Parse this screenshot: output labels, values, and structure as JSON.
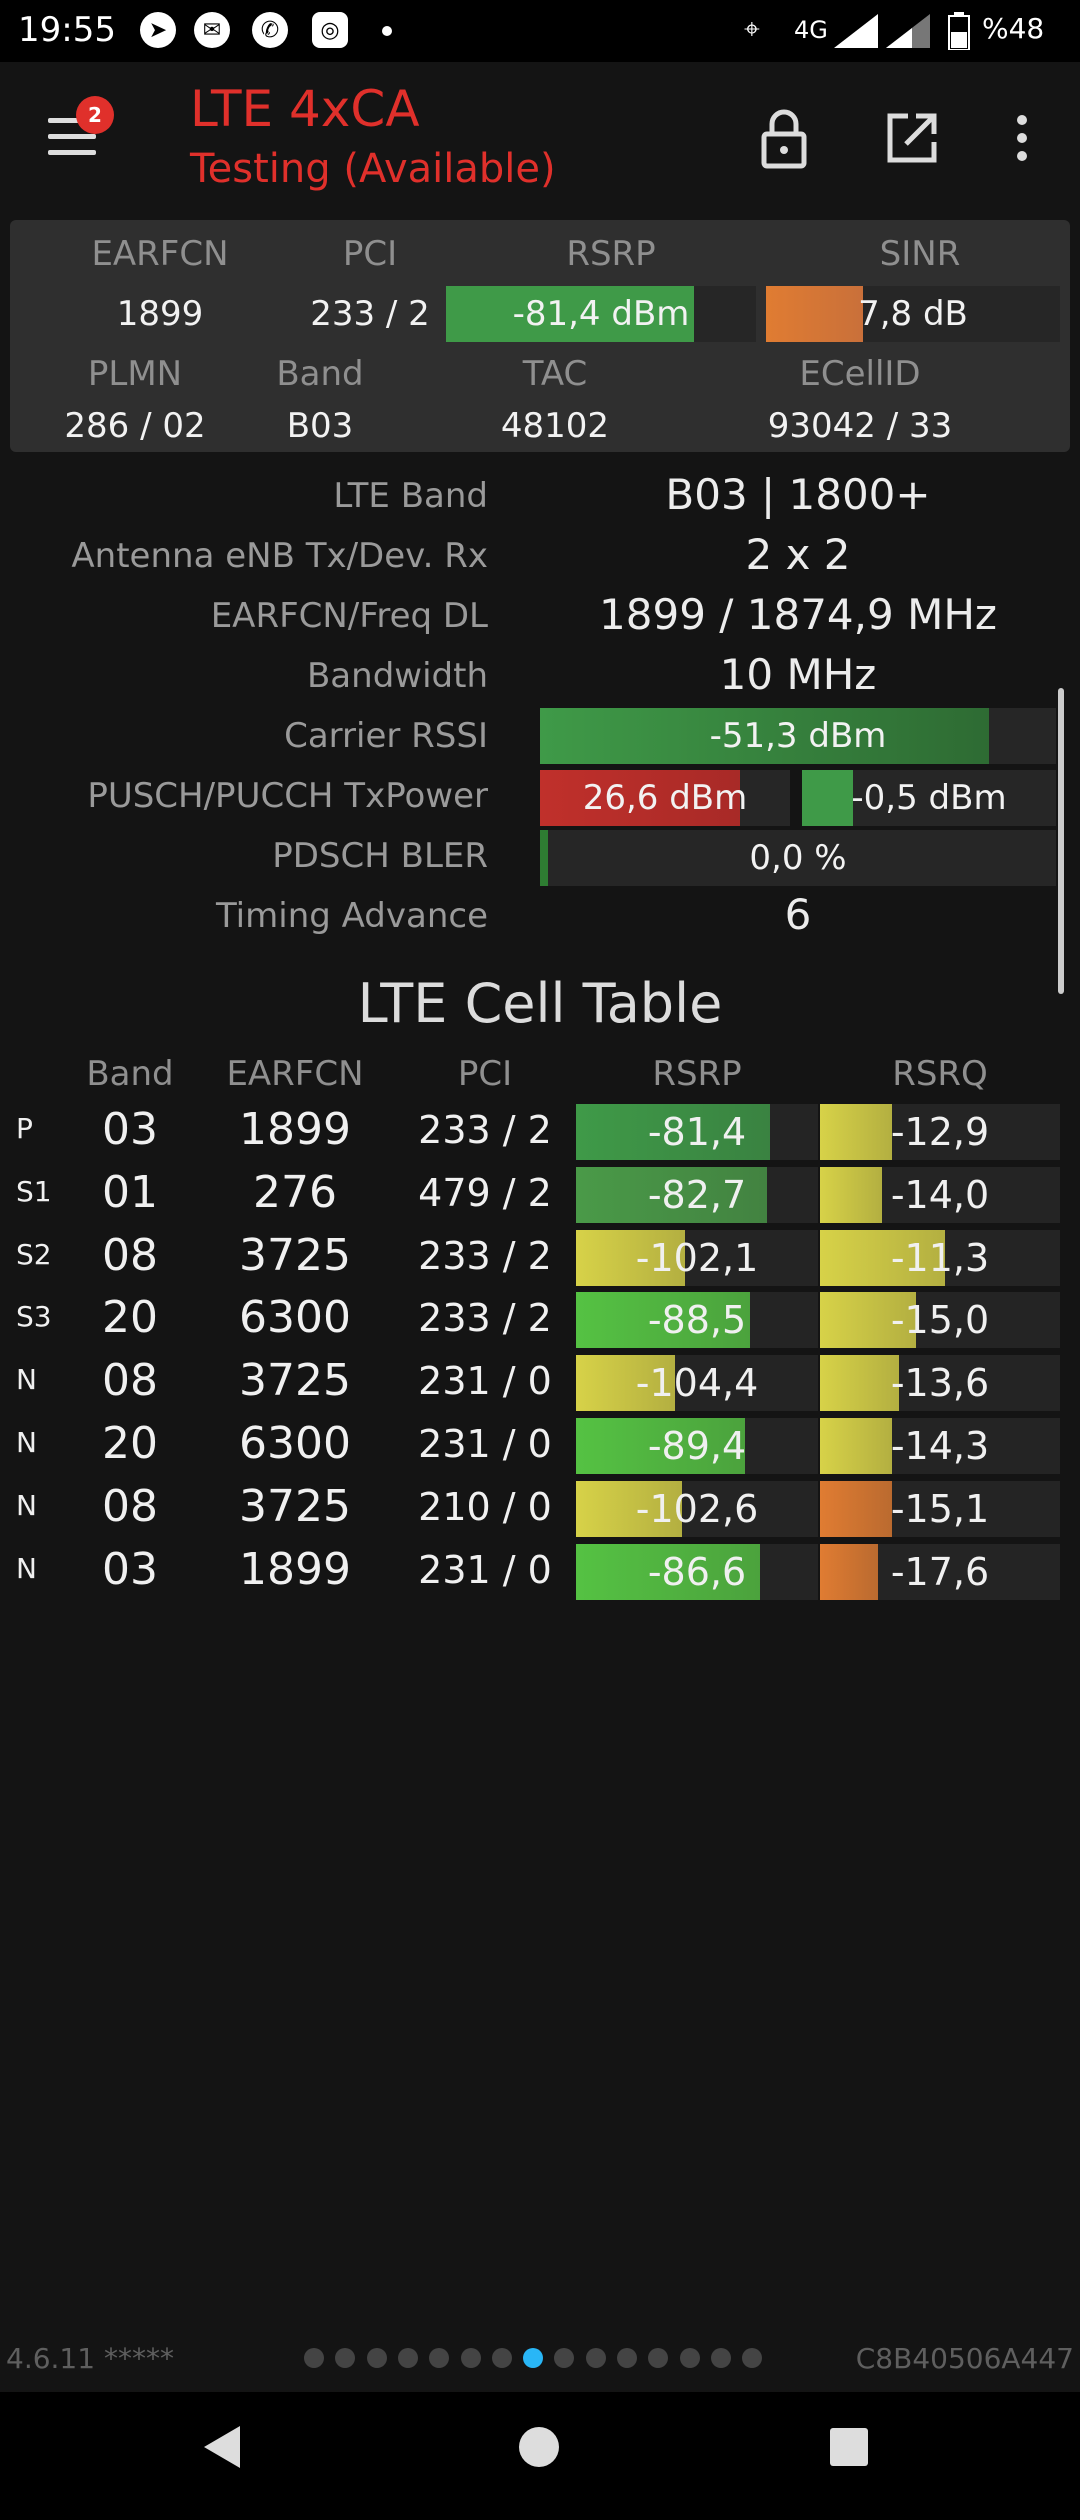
{
  "status_bar": {
    "time": "19:55",
    "network": "4G",
    "battery": "%48"
  },
  "toolbar": {
    "title": "LTE 4xCA",
    "subtitle": "Testing (Available)",
    "badge_count": "2"
  },
  "summary": {
    "earfcn_label": "EARFCN",
    "pci_label": "PCI",
    "rsrp_label": "RSRP",
    "sinr_label": "SINR",
    "earfcn": "1899",
    "pci": "233 / 2",
    "rsrp": "-81,4 dBm",
    "rsrp_level": 0.8,
    "sinr": "7,8 dB",
    "sinr_level": 0.33,
    "plmn_label": "PLMN",
    "band_label": "Band",
    "tac_label": "TAC",
    "ecellid_label": "ECellID",
    "plmn": "286 / 02",
    "band": "B03",
    "tac": "48102",
    "ecellid": "93042 / 33"
  },
  "details": {
    "lte_band_label": "LTE Band",
    "lte_band": "B03 | 1800+",
    "antenna_label": "Antenna eNB Tx/Dev. Rx",
    "antenna": "2 x 2",
    "earfcn_freq_label": "EARFCN/Freq DL",
    "earfcn_freq": "1899 / 1874,9 MHz",
    "bandwidth_label": "Bandwidth",
    "bandwidth": "10 MHz",
    "rssi_label": "Carrier RSSI",
    "rssi": "-51,3 dBm",
    "rssi_level": 0.87,
    "txpower_label": "PUSCH/PUCCH TxPower",
    "pusch": "26,6 dBm",
    "pusch_level": 0.8,
    "pucch": "-0,5 dBm",
    "pucch_level": 0.2,
    "bler_label": "PDSCH BLER",
    "bler": "0,0 %",
    "bler_level": 0.01,
    "ta_label": "Timing Advance",
    "ta": "6"
  },
  "cell_table": {
    "title": "LTE Cell Table",
    "headers": {
      "band": "Band",
      "earfcn": "EARFCN",
      "pci": "PCI",
      "rsrp": "RSRP",
      "rsrq": "RSRQ"
    },
    "rows": [
      {
        "type": "P",
        "band": "03",
        "earfcn": "1899",
        "pci": "233 / 2",
        "rsrp": "-81,4",
        "rsrp_level": 0.8,
        "rsrp_color": "#3f9a48",
        "rsrq": "-12,9",
        "rsrq_level": 0.3,
        "rsrq_color": "#d7d248"
      },
      {
        "type": "S1",
        "band": "01",
        "earfcn": "276",
        "pci": "479 / 2",
        "rsrp": "-82,7",
        "rsrp_level": 0.79,
        "rsrp_color": "#4a9a48",
        "rsrq": "-14,0",
        "rsrq_level": 0.26,
        "rsrq_color": "#d7d248"
      },
      {
        "type": "S2",
        "band": "08",
        "earfcn": "3725",
        "pci": "233 / 2",
        "rsrp": "-102,1",
        "rsrp_level": 0.45,
        "rsrp_color": "#d7d248",
        "rsrq": "-11,3",
        "rsrq_level": 0.52,
        "rsrq_color": "#d7d248"
      },
      {
        "type": "S3",
        "band": "20",
        "earfcn": "6300",
        "pci": "233 / 2",
        "rsrp": "-88,5",
        "rsrp_level": 0.72,
        "rsrp_color": "#55c243",
        "rsrq": "-15,0",
        "rsrq_level": 0.4,
        "rsrq_color": "#d7d248"
      },
      {
        "type": "N",
        "band": "08",
        "earfcn": "3725",
        "pci": "231 / 0",
        "rsrp": "-104,4",
        "rsrp_level": 0.41,
        "rsrp_color": "#d7d248",
        "rsrq": "-13,6",
        "rsrq_level": 0.33,
        "rsrq_color": "#d7d248"
      },
      {
        "type": "N",
        "band": "20",
        "earfcn": "6300",
        "pci": "231 / 0",
        "rsrp": "-89,4",
        "rsrp_level": 0.7,
        "rsrp_color": "#55c243",
        "rsrq": "-14,3",
        "rsrq_level": 0.3,
        "rsrq_color": "#d7d248"
      },
      {
        "type": "N",
        "band": "08",
        "earfcn": "3725",
        "pci": "210 / 0",
        "rsrp": "-102,6",
        "rsrp_level": 0.44,
        "rsrp_color": "#d7d248",
        "rsrq": "-15,1",
        "rsrq_level": 0.3,
        "rsrq_color": "#e07c32"
      },
      {
        "type": "N",
        "band": "03",
        "earfcn": "1899",
        "pci": "231 / 0",
        "rsrp": "-86,6",
        "rsrp_level": 0.76,
        "rsrp_color": "#55c243",
        "rsrq": "-17,6",
        "rsrq_level": 0.24,
        "rsrq_color": "#e07c32"
      }
    ]
  },
  "footer": {
    "version": "4.6.11 *****",
    "device_id": "C8B40506A447",
    "page_count": 15,
    "active_page": 7
  },
  "colors": {
    "accent_red": "#e0302b",
    "good_green": "#3f9a48",
    "sinr_orange": "#e07c32",
    "bler_green": "#2e7d32",
    "tx_red": "#c0302b",
    "page_dot_active": "#29b6f6"
  }
}
